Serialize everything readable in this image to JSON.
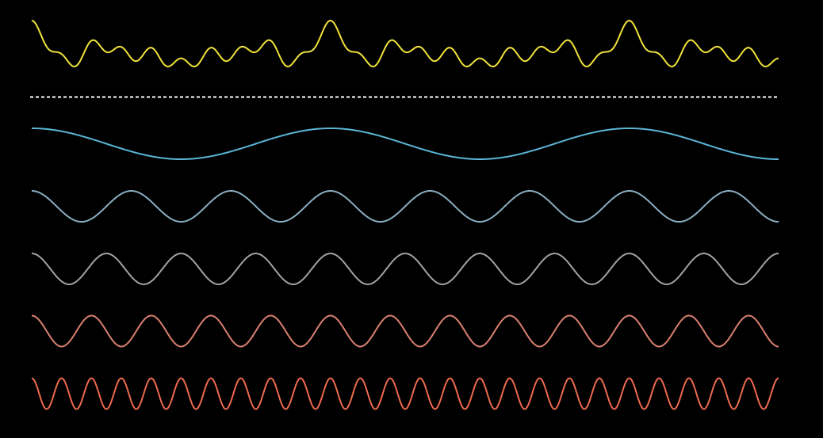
{
  "composite": {
    "color": "#f2e33a"
  },
  "components": [
    {
      "cycles": 2.5,
      "color": "#5ab6d6"
    },
    {
      "cycles": 7.5,
      "color": "#8aaec2"
    },
    {
      "cycles": 10,
      "color": "#a3a3a3"
    },
    {
      "cycles": 12.5,
      "color": "#d9806f"
    },
    {
      "cycles": 25,
      "color": "#ee6a50"
    }
  ]
}
